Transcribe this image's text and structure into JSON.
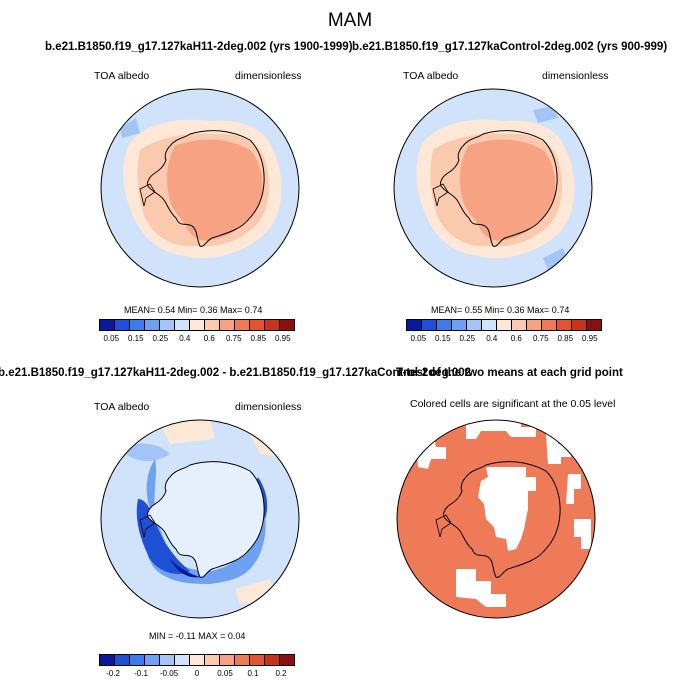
{
  "figure": {
    "title": "MAM"
  },
  "panels": [
    {
      "title": "b.e21.B1850.f19_g17.127kaH11-2deg.002 (yrs 1900-1999)",
      "left_label": "TOA albedo",
      "right_label": "dimensionless",
      "stats": "MEAN=  0.54  Min=  0.36  Max=  0.74"
    },
    {
      "title": "b.e21.B1850.f19_g17.127kaControl-2deg.002 (yrs 900-999)",
      "left_label": "TOA albedo",
      "right_label": "dimensionless",
      "stats": "MEAN=  0.55  Min=  0.36  Max=  0.74"
    },
    {
      "title": "b.e21.B1850.f19_g17.127kaH11-2deg.002 - b.e21.B1850.f19_g17.127kaControl-2deg.002",
      "left_label": "TOA albedo",
      "right_label": "dimensionless",
      "stats": "MIN =  -0.11  MAX =   0.04"
    },
    {
      "title": "T-test of the two means at each grid point",
      "subtitle": "Colored cells are significant at the 0.05 level"
    }
  ],
  "colorbars": {
    "abs": {
      "colors": [
        "#08199c",
        "#1f4fd4",
        "#3d7be8",
        "#6ea1f2",
        "#a3c4f7",
        "#d1e2fb",
        "#fde8d7",
        "#fbc9ae",
        "#f6a283",
        "#ef7a58",
        "#e4532f",
        "#c8341b",
        "#8a1010"
      ],
      "labels": [
        "0.05",
        "0.15",
        "0.25",
        "0.4",
        "0.6",
        "0.75",
        "0.85",
        "0.95"
      ]
    },
    "diff": {
      "colors": [
        "#08199c",
        "#1f4fd4",
        "#3d7be8",
        "#6ea1f2",
        "#a3c4f7",
        "#d1e2fb",
        "#fde8d7",
        "#fbc9ae",
        "#f6a283",
        "#ef7a58",
        "#e4532f",
        "#c8341b",
        "#8a1010"
      ],
      "labels": [
        "-0.2",
        "-0.1",
        "-0.05",
        "0",
        "0.05",
        "0.1",
        "0.2"
      ]
    }
  },
  "colors": {
    "ocean_light": "#d1e2fb",
    "land_salmon": "#f6a283",
    "ttest_fill": "#ef7a58"
  }
}
